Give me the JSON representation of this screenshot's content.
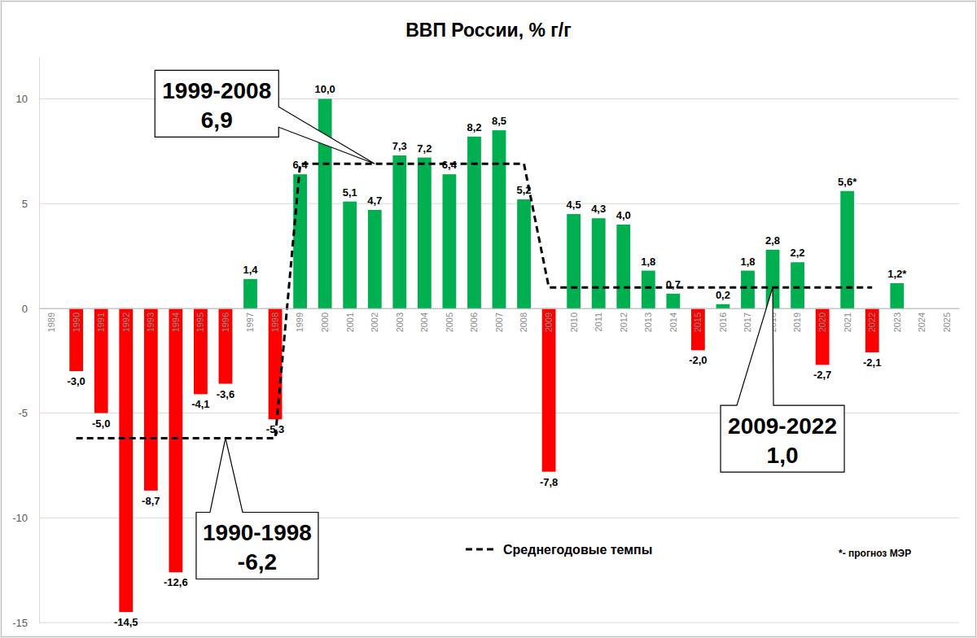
{
  "chart_data": {
    "type": "bar",
    "title": "ВВП России, % г/г",
    "categories": [
      "1989",
      "1990",
      "1991",
      "1992",
      "1993",
      "1994",
      "1995",
      "1996",
      "1997",
      "1998",
      "1999",
      "2000",
      "2001",
      "2002",
      "2003",
      "2004",
      "2005",
      "2006",
      "2007",
      "2008",
      "2009",
      "2010",
      "2011",
      "2012",
      "2013",
      "2014",
      "2015",
      "2016",
      "2017",
      "2018",
      "2019",
      "2020",
      "2021",
      "2022",
      "2023",
      "2024",
      "2025"
    ],
    "series": [
      {
        "type": "bar",
        "values": [
          null,
          -3.0,
          -5.0,
          -14.5,
          -8.7,
          -12.6,
          -4.1,
          -3.6,
          1.4,
          -5.3,
          6.4,
          10.0,
          5.1,
          4.7,
          7.3,
          7.2,
          6.4,
          8.2,
          8.5,
          5.2,
          -7.8,
          4.5,
          4.3,
          4.0,
          1.8,
          0.7,
          -2.0,
          0.2,
          1.8,
          2.8,
          2.2,
          -2.7,
          5.6,
          -2.1,
          1.2,
          null,
          null
        ],
        "value_labels": [
          null,
          "-3,0",
          "-5,0",
          "-14,5",
          "-8,7",
          "-12,6",
          "-4,1",
          "-3,6",
          "1,4",
          "-5,3",
          "6,4",
          "10,0",
          "5,1",
          "4,7",
          "7,3",
          "7,2",
          "6,4",
          "8,2",
          "8,5",
          "5,2",
          "-7,8",
          "4,5",
          "4,3",
          "4,0",
          "1,8",
          "0,7",
          "-2,0",
          "0,2",
          "1,8",
          "2,8",
          "2,2",
          "-2,7",
          "5,6*",
          "-2,1",
          "1,2*",
          null,
          null
        ],
        "colors": [
          null,
          "#ff0000",
          "#ff0000",
          "#ff0000",
          "#ff0000",
          "#ff0000",
          "#ff0000",
          "#ff0000",
          "#00b050",
          "#ff0000",
          "#00b050",
          "#00b050",
          "#00b050",
          "#00b050",
          "#00b050",
          "#00b050",
          "#00b050",
          "#00b050",
          "#00b050",
          "#00b050",
          "#ff0000",
          "#00b050",
          "#00b050",
          "#00b050",
          "#00b050",
          "#00b050",
          "#ff0000",
          "#00b050",
          "#00b050",
          "#00b050",
          "#00b050",
          "#ff0000",
          "#00b050",
          "#ff0000",
          "#00b050",
          null,
          null
        ]
      },
      {
        "type": "line",
        "name": "Среднегодовые темпы",
        "color": "#000000",
        "line_style": "dashed",
        "values": [
          null,
          -6.2,
          -6.2,
          -6.2,
          -6.2,
          -6.2,
          -6.2,
          -6.2,
          -6.2,
          -6.2,
          6.9,
          6.9,
          6.9,
          6.9,
          6.9,
          6.9,
          6.9,
          6.9,
          6.9,
          6.9,
          1.0,
          1.0,
          1.0,
          1.0,
          1.0,
          1.0,
          1.0,
          1.0,
          1.0,
          1.0,
          1.0,
          1.0,
          1.0,
          1.0,
          null,
          null,
          null
        ]
      }
    ],
    "ylim": [
      -15,
      12
    ],
    "yticks": [
      -15,
      -10,
      -5,
      0,
      5,
      10
    ],
    "grid": true,
    "data_labels": true,
    "legend": "bottom",
    "annotations": [
      {
        "text": "1990-1998",
        "value": -6.2,
        "value_label": "-6,2",
        "x": "1996"
      },
      {
        "text": "1999-2008",
        "value": 6.9,
        "value_label": "6,9",
        "x": "2002"
      },
      {
        "text": "2009-2022",
        "value": 1.0,
        "value_label": "1,0",
        "x": "2018"
      }
    ],
    "note": "*- прогноз МЭР"
  }
}
